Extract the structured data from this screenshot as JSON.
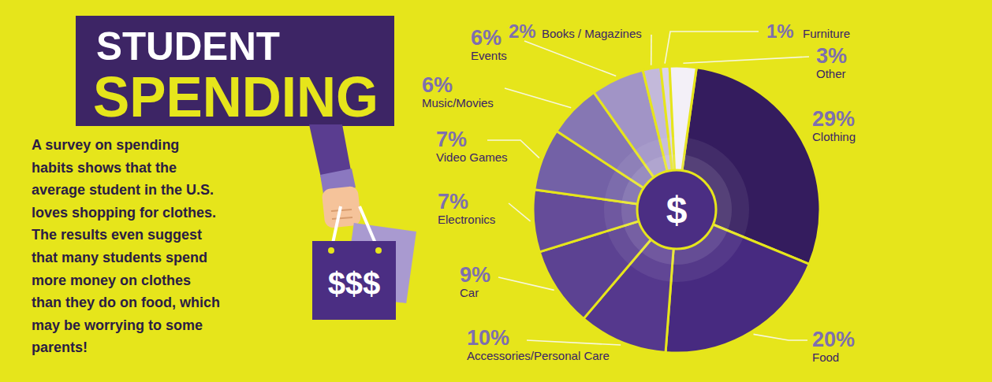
{
  "chart_data": {
    "type": "pie",
    "title": "STUDENT",
    "subtitle": "SPENDING",
    "categories": [
      "Clothing",
      "Food",
      "Accessories/Personal Care",
      "Car",
      "Electronics",
      "Video Games",
      "Music/Movies",
      "Events",
      "Books / Magazines",
      "Furniture",
      "Other"
    ],
    "values": [
      29,
      20,
      10,
      9,
      7,
      7,
      6,
      6,
      2,
      1,
      3
    ],
    "value_labels": [
      "29%",
      "20%",
      "10%",
      "9%",
      "7%",
      "7%",
      "6%",
      "6%",
      "2%",
      "1%",
      "3%"
    ],
    "data_labels": true,
    "colors": [
      "#341c5e",
      "#472a80",
      "#55388d",
      "#5c4292",
      "#654c99",
      "#7361a6",
      "#8677b3",
      "#a194c6",
      "#c3b9da",
      "#dcd5e9",
      "#f3f0f7"
    ],
    "annotations": [
      "A survey on spending",
      "habits shows that the",
      "average student in the U.S.",
      "loves shopping for clothes.",
      "The results even suggest",
      "that many students spend",
      "more money on clothes",
      "than they do on food, which",
      "may be worrying to some",
      "parents!",
      "$$$",
      "$"
    ]
  }
}
